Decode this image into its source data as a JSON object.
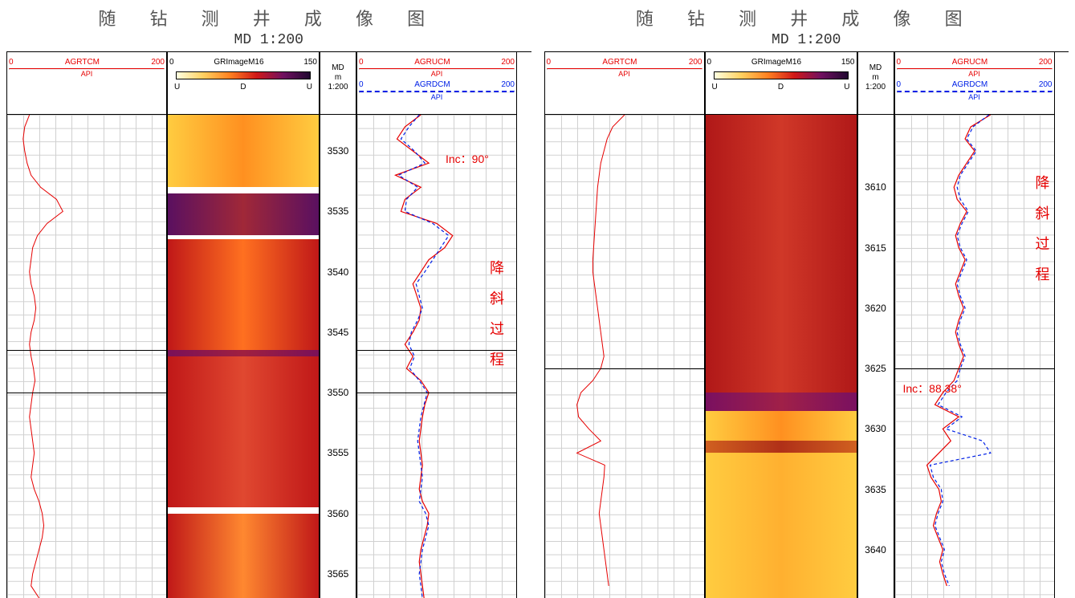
{
  "panels": [
    {
      "title": "随 钻 测 井 成 像 图",
      "subtitle": "MD 1:200",
      "depth_start": 3527,
      "depth_end": 3567,
      "depth_ticks": [
        3530,
        3535,
        3540,
        3545,
        3550,
        3555,
        3560,
        3565
      ],
      "dark_lines": [
        3546.5,
        3550
      ],
      "track1": {
        "label": "AGRTCM",
        "min": "0",
        "max": "200",
        "unit": "API",
        "color": "#e60000",
        "curve_x": [
          28,
          22,
          20,
          22,
          25,
          30,
          42,
          62,
          70,
          50,
          38,
          32,
          30,
          28,
          30,
          34,
          36,
          34,
          30,
          28,
          30,
          33,
          35,
          32,
          30,
          28,
          30,
          32,
          34,
          32,
          30,
          34,
          40,
          44,
          46,
          44,
          40,
          36,
          32,
          30,
          40
        ],
        "curve_depths": [
          3527,
          3528,
          3529,
          3530,
          3531,
          3532,
          3533,
          3534,
          3535,
          3536,
          3537,
          3538,
          3539,
          3540,
          3541,
          3542,
          3543,
          3544,
          3545,
          3546,
          3547,
          3548,
          3549,
          3550,
          3551,
          3552,
          3553,
          3554,
          3555,
          3556,
          3557,
          3558,
          3559,
          3560,
          3561,
          3562,
          3563,
          3564,
          3565,
          3566,
          3567
        ]
      },
      "image": {
        "label": "GRImageM16",
        "min": "0",
        "max": "150",
        "udu": [
          "U",
          "D",
          "U"
        ],
        "gradient_stops": [
          "#ffffe0",
          "#ffd060",
          "#ff8020",
          "#d01818",
          "#701060",
          "#200830"
        ],
        "bands": [
          {
            "from": 3527,
            "to": 3533,
            "c1": "#ffcc40",
            "c2": "#ff9020"
          },
          {
            "from": 3533,
            "to": 3533.5,
            "c1": "#ffffff",
            "c2": "#ffffff"
          },
          {
            "from": 3533.5,
            "to": 3537,
            "c1": "#5a1060",
            "c2": "#a02838"
          },
          {
            "from": 3537,
            "to": 3537.3,
            "c1": "#ffffff",
            "c2": "#ffffff"
          },
          {
            "from": 3537.3,
            "to": 3546.5,
            "c1": "#c01818",
            "c2": "#ff7020"
          },
          {
            "from": 3546.5,
            "to": 3547,
            "c1": "#7a1058",
            "c2": "#a02040"
          },
          {
            "from": 3547,
            "to": 3559.5,
            "c1": "#c01818",
            "c2": "#e04830"
          },
          {
            "from": 3559.5,
            "to": 3560,
            "c1": "#ffffff",
            "c2": "#ffffff"
          },
          {
            "from": 3560,
            "to": 3567,
            "c1": "#c01818",
            "c2": "#ff8830"
          }
        ]
      },
      "depth": {
        "label1": "MD",
        "label2": "m",
        "label3": "1:200"
      },
      "track3": {
        "series": [
          {
            "label": "AGRUCM",
            "min": "0",
            "max": "200",
            "unit": "API",
            "color": "#e60000",
            "style": "solid",
            "curve_x": [
              80,
              60,
              50,
              70,
              90,
              48,
              80,
              60,
              55,
              100,
              120,
              110,
              90,
              80,
              70,
              75,
              80,
              78,
              70,
              60,
              70,
              62,
              80,
              90,
              85,
              82,
              80,
              78,
              80,
              82,
              80,
              78,
              82,
              90,
              88,
              84,
              80,
              78,
              80,
              82,
              84
            ],
            "curve_depths": [
              3527,
              3528,
              3529,
              3530,
              3531,
              3532,
              3533,
              3534,
              3535,
              3536,
              3537,
              3538,
              3539,
              3540,
              3541,
              3542,
              3543,
              3544,
              3545,
              3546,
              3547,
              3548,
              3549,
              3550,
              3551,
              3552,
              3553,
              3554,
              3555,
              3556,
              3557,
              3558,
              3559,
              3560,
              3561,
              3562,
              3563,
              3564,
              3565,
              3566,
              3567
            ]
          },
          {
            "label": "AGRDCM",
            "min": "0",
            "max": "200",
            "unit": "API",
            "color": "#0020e6",
            "style": "dashed",
            "curve_x": [
              78,
              65,
              55,
              72,
              85,
              52,
              76,
              62,
              60,
              95,
              115,
              105,
              95,
              85,
              74,
              78,
              82,
              76,
              68,
              65,
              72,
              66,
              78,
              88,
              84,
              80,
              78,
              76,
              78,
              80,
              82,
              80,
              78,
              86,
              90,
              86,
              82,
              80,
              78,
              80,
              82
            ],
            "curve_depths": [
              3527,
              3528,
              3529,
              3530,
              3531,
              3532,
              3533,
              3534,
              3535,
              3536,
              3537,
              3538,
              3539,
              3540,
              3541,
              3542,
              3543,
              3544,
              3545,
              3546,
              3547,
              3548,
              3549,
              3550,
              3551,
              3552,
              3553,
              3554,
              3555,
              3556,
              3557,
              3558,
              3559,
              3560,
              3561,
              3562,
              3563,
              3564,
              3565,
              3566,
              3567
            ]
          }
        ],
        "annot_inc": {
          "text": "Inc：90°",
          "depth": 3530,
          "x": 110
        },
        "annot_vert": {
          "text": "降斜过程",
          "depth_start": 3539,
          "x": 160
        }
      }
    },
    {
      "title": "随 钻 测 井 成 像 图",
      "subtitle": "MD 1:200",
      "depth_start": 3604,
      "depth_end": 3644,
      "depth_ticks": [
        3610,
        3615,
        3620,
        3625,
        3630,
        3635,
        3640
      ],
      "dark_lines": [
        3625
      ],
      "track1": {
        "label": "AGRTCM",
        "min": "0",
        "max": "200",
        "unit": "API",
        "color": "#e60000",
        "curve_x": [
          100,
          85,
          78,
          74,
          70,
          68,
          66,
          65,
          64,
          63,
          62,
          61,
          60,
          60,
          62,
          64,
          66,
          68,
          70,
          72,
          74,
          70,
          60,
          45,
          40,
          42,
          55,
          70,
          40,
          75,
          74,
          72,
          70,
          68,
          70,
          72,
          74,
          76,
          78,
          80
        ],
        "curve_depths": [
          3604,
          3605,
          3606,
          3607,
          3608,
          3609,
          3610,
          3611,
          3612,
          3613,
          3614,
          3615,
          3616,
          3617,
          3618,
          3619,
          3620,
          3621,
          3622,
          3623,
          3624,
          3625,
          3626,
          3627,
          3628,
          3629,
          3630,
          3631,
          3632,
          3633,
          3634,
          3635,
          3636,
          3637,
          3638,
          3639,
          3640,
          3641,
          3642,
          3643
        ]
      },
      "image": {
        "label": "GRImageM16",
        "min": "0",
        "max": "150",
        "udu": [
          "U",
          "D",
          "U"
        ],
        "gradient_stops": [
          "#ffffe0",
          "#ffd060",
          "#ff8020",
          "#d01818",
          "#701060",
          "#200830"
        ],
        "bands": [
          {
            "from": 3604,
            "to": 3627,
            "c1": "#b01818",
            "c2": "#d03828"
          },
          {
            "from": 3627,
            "to": 3628.5,
            "c1": "#7a1060",
            "c2": "#a02048"
          },
          {
            "from": 3628.5,
            "to": 3631,
            "c1": "#ffcc40",
            "c2": "#ff9020"
          },
          {
            "from": 3631,
            "to": 3632,
            "c1": "#d06020",
            "c2": "#b03018"
          },
          {
            "from": 3632,
            "to": 3644,
            "c1": "#ffcc40",
            "c2": "#ffb030"
          }
        ]
      },
      "depth": {
        "label1": "MD",
        "label2": "m",
        "label3": "1:200"
      },
      "track3": {
        "series": [
          {
            "label": "AGRUCM",
            "min": "0",
            "max": "200",
            "unit": "API",
            "color": "#e60000",
            "style": "solid",
            "curve_x": [
              120,
              95,
              88,
              100,
              90,
              80,
              74,
              78,
              90,
              82,
              76,
              80,
              88,
              82,
              76,
              80,
              86,
              80,
              76,
              80,
              86,
              80,
              74,
              60,
              50,
              80,
              60,
              70,
              55,
              40,
              45,
              55,
              58,
              52,
              48,
              54,
              60,
              56,
              60,
              65
            ],
            "curve_depths": [
              3604,
              3605,
              3606,
              3607,
              3608,
              3609,
              3610,
              3611,
              3612,
              3613,
              3614,
              3615,
              3616,
              3617,
              3618,
              3619,
              3620,
              3621,
              3622,
              3623,
              3624,
              3625,
              3626,
              3627,
              3628,
              3629,
              3630,
              3631,
              3632,
              3633,
              3634,
              3635,
              3636,
              3637,
              3638,
              3639,
              3640,
              3641,
              3642,
              3643
            ]
          },
          {
            "label": "AGRDCM",
            "min": "0",
            "max": "200",
            "unit": "API",
            "color": "#0020e6",
            "style": "dashed",
            "curve_x": [
              118,
              98,
              90,
              102,
              92,
              82,
              78,
              82,
              92,
              84,
              78,
              82,
              90,
              84,
              78,
              82,
              88,
              82,
              78,
              82,
              88,
              82,
              78,
              64,
              54,
              84,
              64,
              110,
              120,
              44,
              48,
              58,
              60,
              54,
              50,
              56,
              62,
              58,
              62,
              68
            ],
            "curve_depths": [
              3604,
              3605,
              3606,
              3607,
              3608,
              3609,
              3610,
              3611,
              3612,
              3613,
              3614,
              3615,
              3616,
              3617,
              3618,
              3619,
              3620,
              3621,
              3622,
              3623,
              3624,
              3625,
              3626,
              3627,
              3628,
              3629,
              3630,
              3631,
              3632,
              3633,
              3634,
              3635,
              3636,
              3637,
              3638,
              3639,
              3640,
              3641,
              3642,
              3643
            ]
          }
        ],
        "annot_inc": {
          "text": "Inc：88.38°",
          "depth": 3626,
          "x": 10
        },
        "annot_vert": {
          "text": "降斜过程",
          "depth_start": 3609,
          "x": 170
        }
      }
    }
  ],
  "colors": {
    "red": "#e60000",
    "blue": "#0020e6",
    "grid": "#d0d0d0",
    "black": "#000000",
    "bg": "#ffffff"
  },
  "x_range_track1": [
    0,
    200
  ],
  "x_range_track3": [
    0,
    200
  ]
}
